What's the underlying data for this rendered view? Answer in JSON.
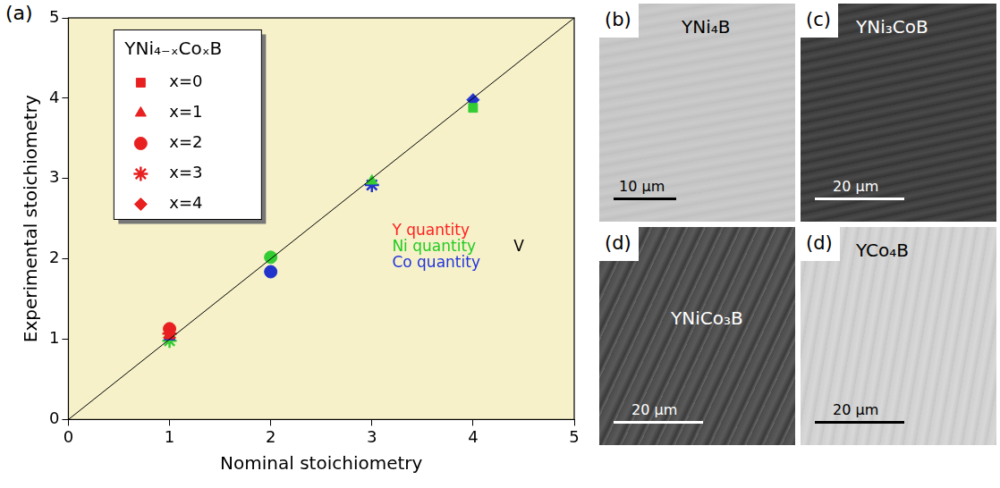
{
  "chart_data": {
    "type": "scatter",
    "x_label": "Nominal stoichiometry",
    "y_label": "Experimental stoichiometry",
    "xlim": [
      0,
      5
    ],
    "ylim": [
      0,
      5
    ],
    "xticks": [
      0,
      1,
      2,
      3,
      4,
      5
    ],
    "yticks": [
      0,
      1,
      2,
      3,
      4,
      5
    ],
    "grid": false,
    "legend": "top-left",
    "legend_title": "YNi₄₋ₓCoₓB",
    "reference_line": {
      "x": [
        0,
        5
      ],
      "values": [
        0,
        5
      ]
    },
    "series": [
      {
        "name": "x=0",
        "marker": "square",
        "color": "#e82020",
        "x": [
          1,
          4
        ],
        "values": [
          1.06,
          3.88
        ],
        "colors": [
          "#e82020",
          "#33cc33"
        ]
      },
      {
        "name": "x=1",
        "marker": "triangle",
        "color": "#e82020",
        "x": [
          1,
          3,
          1
        ],
        "values": [
          1.05,
          2.97,
          1.03
        ],
        "colors": [
          "#e82020",
          "#33cc33",
          "#2233cc"
        ]
      },
      {
        "name": "x=2",
        "marker": "circle",
        "color": "#e82020",
        "x": [
          1,
          2,
          2
        ],
        "values": [
          1.13,
          2.02,
          1.84
        ],
        "colors": [
          "#e82020",
          "#33cc33",
          "#2233cc"
        ]
      },
      {
        "name": "x=3",
        "marker": "star",
        "color": "#e82020",
        "x": [
          1,
          1,
          3
        ],
        "values": [
          1.07,
          0.98,
          2.92
        ],
        "colors": [
          "#e82020",
          "#33cc33",
          "#2233cc"
        ]
      },
      {
        "name": "x=4",
        "marker": "diamond",
        "color": "#e82020",
        "x": [
          1,
          4
        ],
        "values": [
          1.02,
          3.98
        ],
        "colors": [
          "#e82020",
          "#2233cc"
        ]
      }
    ],
    "annotations": [
      {
        "text": "Y quantity",
        "color": "#ff2020"
      },
      {
        "text": "Ni quantity",
        "color": "#22cc22"
      },
      {
        "text": "Co quantity",
        "color": "#2233dd"
      },
      {
        "text": "V",
        "color": "#000000"
      }
    ]
  },
  "panel_label": "(a)",
  "images": [
    {
      "letter": "(b)",
      "label": "YNi₄B",
      "scale_bar": "10 μm"
    },
    {
      "letter": "(c)",
      "label": "YNi₃CoB",
      "scale_bar": "20 μm"
    },
    {
      "letter": "(d)",
      "label": "YNiCo₃B",
      "scale_bar": "20 μm"
    },
    {
      "letter": "(d)",
      "label": "YCo₄B",
      "scale_bar": "20 μm"
    }
  ]
}
